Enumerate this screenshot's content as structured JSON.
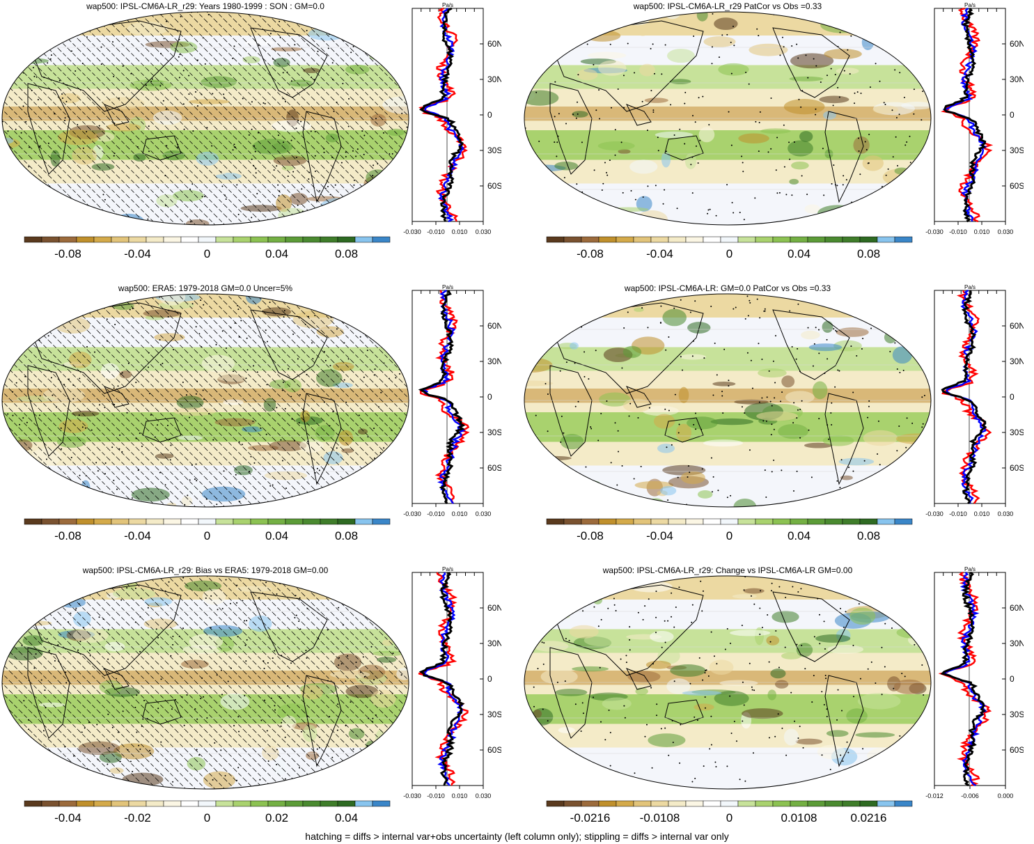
{
  "colors": {
    "brown_dark": "#5a3a1e",
    "tan": "#e8d9a8",
    "green": "#8cc252",
    "green_dark": "#3f7d2a",
    "blue": "#3a86c8",
    "ocean_white": "#f4f6fb",
    "profile_model": "#000000",
    "profile_obs": "#ff0000",
    "profile_blue": "#0000ff"
  },
  "lat_labels": [
    "60N",
    "30N",
    "0",
    "30S",
    "60S"
  ],
  "profile_unit": "Pa/s",
  "panels": [
    {
      "title": "wap500: IPSL-CM6A-LR_r29: Years 1980-1999 : SON : GM=0.0",
      "colorbar_labels": [
        "-0.08",
        "-0.04",
        "0",
        "0.04",
        "0.08"
      ],
      "profile_ticks": [
        "-0.030",
        "-0.010",
        "0.010",
        "0.030"
      ],
      "hatch": true
    },
    {
      "title": "wap500: IPSL-CM6A-LR_r29 PatCor vs Obs =0.33",
      "colorbar_labels": [
        "-0.08",
        "-0.04",
        "0",
        "0.04",
        "0.08"
      ],
      "profile_ticks": [
        "-0.030",
        "-0.010",
        "0.010",
        "0.030"
      ],
      "hatch": false
    },
    {
      "title": "wap500: ERA5: 1979-2018 GM=0.0 Uncer=5%",
      "colorbar_labels": [
        "-0.08",
        "-0.04",
        "0",
        "0.04",
        "0.08"
      ],
      "profile_ticks": [
        "-0.030",
        "-0.010",
        "0.010",
        "0.030"
      ],
      "hatch": true
    },
    {
      "title": "wap500: IPSL-CM6A-LR: GM=0.0 PatCor vs Obs =0.33",
      "colorbar_labels": [
        "-0.08",
        "-0.04",
        "0",
        "0.04",
        "0.08"
      ],
      "profile_ticks": [
        "-0.030",
        "-0.010",
        "0.010",
        "0.030"
      ],
      "hatch": false
    },
    {
      "title": "wap500: IPSL-CM6A-LR_r29: Bias vs ERA5: 1979-2018  GM=0.00",
      "colorbar_labels": [
        "-0.04",
        "-0.02",
        "0",
        "0.02",
        "0.04"
      ],
      "profile_ticks": [
        "-0.030",
        "-0.010",
        "0.010",
        "0.030"
      ],
      "hatch": true
    },
    {
      "title": "wap500: IPSL-CM6A-LR_r29: Change vs IPSL-CM6A-LR GM=0.00",
      "colorbar_labels": [
        "-0.0216",
        "-0.0108",
        "0",
        "0.0108",
        "0.0216"
      ],
      "profile_ticks": [
        "-0.012",
        "-0.006",
        "0.000"
      ],
      "hatch": false
    }
  ],
  "colorbar_colors": [
    "#5a3a1e",
    "#7a5230",
    "#9c6b3c",
    "#c0902c",
    "#d4aa4a",
    "#e2c47a",
    "#ecd9a2",
    "#f4ebc8",
    "#fbf6e4",
    "#ffffff",
    "#f2f7fb",
    "#c7e29a",
    "#a9d26e",
    "#8cc252",
    "#74b044",
    "#5c9c38",
    "#4a8a30",
    "#3f7d2a",
    "#2e6a22",
    "#88c4ee",
    "#3a86c8"
  ],
  "footer": "hatching = diffs > internal var+obs uncertainty (left column only); stippling = diffs > internal var only"
}
